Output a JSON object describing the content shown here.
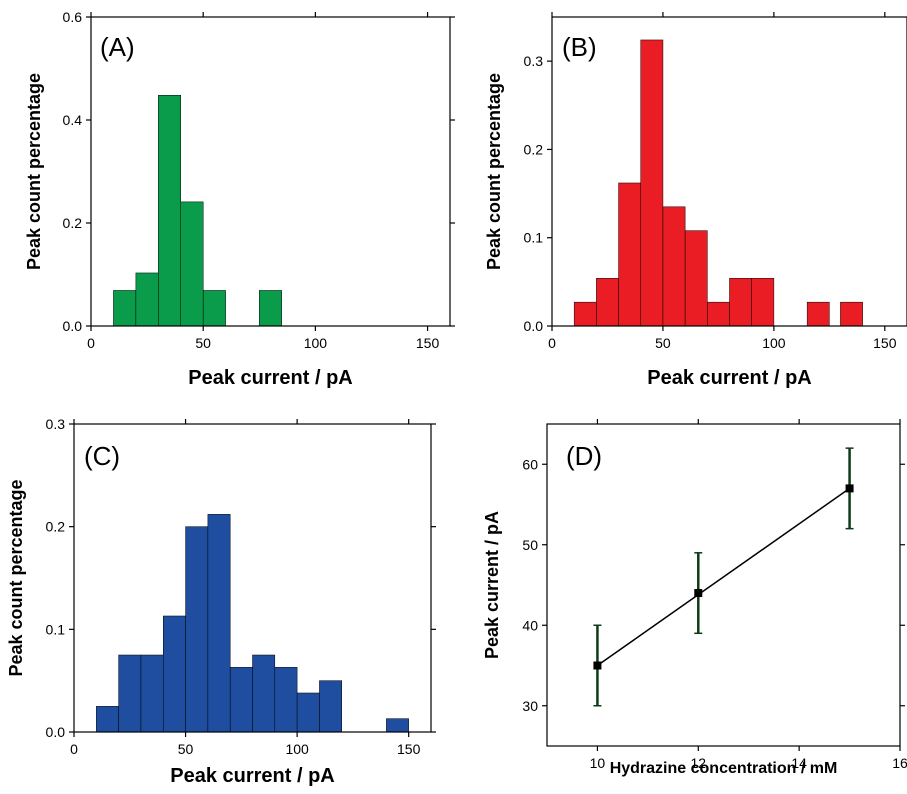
{
  "chart_data": [
    {
      "panel_label": "(A)",
      "type": "bar",
      "xlabel": "Peak current / pA",
      "ylabel": "Peak count percentage",
      "xlim": [
        0,
        160
      ],
      "ylim": [
        0,
        0.6
      ],
      "xticks": [
        "0",
        "50",
        "100",
        "150"
      ],
      "yticks": [
        "0.0",
        "0.2",
        "0.4",
        "0.6"
      ],
      "xtick_values": [
        0,
        50,
        100,
        150
      ],
      "ytick_values": [
        0,
        0.2,
        0.4,
        0.6
      ],
      "bin_width": 10,
      "bins": [
        {
          "x": 15,
          "value": 0.069
        },
        {
          "x": 25,
          "value": 0.103
        },
        {
          "x": 35,
          "value": 0.448
        },
        {
          "x": 45,
          "value": 0.241
        },
        {
          "x": 55,
          "value": 0.069
        },
        {
          "x": 80,
          "value": 0.069
        }
      ],
      "color": "#0a9c4b"
    },
    {
      "panel_label": "(B)",
      "type": "bar",
      "xlabel": "Peak current / pA",
      "ylabel": "Peak count percentage",
      "xlim": [
        0,
        160
      ],
      "ylim": [
        0,
        0.35
      ],
      "xticks": [
        "0",
        "50",
        "100",
        "150"
      ],
      "yticks": [
        "0.0",
        "0.1",
        "0.2",
        "0.3"
      ],
      "xtick_values": [
        0,
        50,
        100,
        150
      ],
      "ytick_values": [
        0,
        0.1,
        0.2,
        0.3
      ],
      "bin_width": 10,
      "bins": [
        {
          "x": 15,
          "value": 0.027
        },
        {
          "x": 25,
          "value": 0.054
        },
        {
          "x": 35,
          "value": 0.162
        },
        {
          "x": 45,
          "value": 0.324
        },
        {
          "x": 55,
          "value": 0.135
        },
        {
          "x": 65,
          "value": 0.108
        },
        {
          "x": 75,
          "value": 0.027
        },
        {
          "x": 85,
          "value": 0.054
        },
        {
          "x": 95,
          "value": 0.054
        },
        {
          "x": 120,
          "value": 0.027
        },
        {
          "x": 135,
          "value": 0.027
        }
      ],
      "color": "#ea1c24"
    },
    {
      "panel_label": "(C)",
      "type": "bar",
      "xlabel": "Peak current / pA",
      "ylabel": "Peak count percentage",
      "xlim": [
        0,
        160
      ],
      "ylim": [
        0,
        0.3
      ],
      "xticks": [
        "0",
        "50",
        "100",
        "150"
      ],
      "yticks": [
        "0.0",
        "0.1",
        "0.2",
        "0.3"
      ],
      "xtick_values": [
        0,
        50,
        100,
        150
      ],
      "ytick_values": [
        0,
        0.1,
        0.2,
        0.3
      ],
      "bin_width": 10,
      "bins": [
        {
          "x": 15,
          "value": 0.025
        },
        {
          "x": 25,
          "value": 0.075
        },
        {
          "x": 35,
          "value": 0.075
        },
        {
          "x": 45,
          "value": 0.113
        },
        {
          "x": 55,
          "value": 0.2
        },
        {
          "x": 65,
          "value": 0.212
        },
        {
          "x": 75,
          "value": 0.063
        },
        {
          "x": 85,
          "value": 0.075
        },
        {
          "x": 95,
          "value": 0.063
        },
        {
          "x": 105,
          "value": 0.038
        },
        {
          "x": 115,
          "value": 0.05
        },
        {
          "x": 145,
          "value": 0.013
        }
      ],
      "color": "#1f4ea1"
    },
    {
      "panel_label": "(D)",
      "type": "line",
      "xlabel": "Hydrazine concentration / mM",
      "ylabel": "Peak current / pA",
      "xlim": [
        9,
        16
      ],
      "ylim": [
        25,
        65
      ],
      "xticks": [
        "10",
        "12",
        "14",
        "16"
      ],
      "yticks": [
        "30",
        "40",
        "50",
        "60"
      ],
      "xtick_values": [
        10,
        12,
        14,
        16
      ],
      "ytick_values": [
        30,
        40,
        50,
        60
      ],
      "x": [
        10,
        12,
        15
      ],
      "y": [
        35,
        44,
        57
      ],
      "yerr": [
        5,
        5,
        5
      ],
      "fit_line": {
        "x": [
          10,
          15
        ],
        "y": [
          35,
          57
        ]
      },
      "marker_color": "#000000",
      "errorbar_color": "#0d3b17"
    }
  ]
}
